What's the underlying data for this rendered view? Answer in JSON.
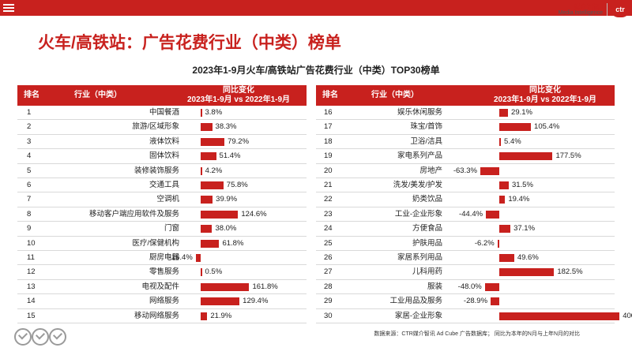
{
  "header": {
    "brand_cn": "媒介智讯 |",
    "brand_en": "Media Intelligence",
    "logo": "ctr"
  },
  "page_title": "火车/高铁站：广告花费行业（中类）榜单",
  "table_title": "2023年1-9月火车/高铁站广告花费行业（中类）TOP30榜单",
  "columns": {
    "rank": "排名",
    "industry": "行业（中类）",
    "change_line1": "同比变化",
    "change_line2": "2023年1-9月 vs 2022年1-9月"
  },
  "left_rows": [
    {
      "rank": "1",
      "industry": "中国餐酒",
      "value": 3.8,
      "label": "3.8%"
    },
    {
      "rank": "2",
      "industry": "旅游/区域形象",
      "value": 38.3,
      "label": "38.3%"
    },
    {
      "rank": "3",
      "industry": "液体饮料",
      "value": 79.2,
      "label": "79.2%"
    },
    {
      "rank": "4",
      "industry": "固体饮料",
      "value": 51.4,
      "label": "51.4%"
    },
    {
      "rank": "5",
      "industry": "装修装饰服务",
      "value": 4.2,
      "label": "4.2%"
    },
    {
      "rank": "6",
      "industry": "交通工具",
      "value": 75.8,
      "label": "75.8%"
    },
    {
      "rank": "7",
      "industry": "空调机",
      "value": 39.9,
      "label": "39.9%"
    },
    {
      "rank": "8",
      "industry": "移动客户端应用软件及服务",
      "value": 124.6,
      "label": "124.6%"
    },
    {
      "rank": "9",
      "industry": "门窗",
      "value": 38.0,
      "label": "38.0%"
    },
    {
      "rank": "10",
      "industry": "医疗/保健机构",
      "value": 61.8,
      "label": "61.8%"
    },
    {
      "rank": "11",
      "industry": "厨房电器",
      "value": -16.4,
      "label": "-16.4%"
    },
    {
      "rank": "12",
      "industry": "零售服务",
      "value": 0.5,
      "label": "0.5%"
    },
    {
      "rank": "13",
      "industry": "电视及配件",
      "value": 161.8,
      "label": "161.8%"
    },
    {
      "rank": "14",
      "industry": "网络服务",
      "value": 129.4,
      "label": "129.4%"
    },
    {
      "rank": "15",
      "industry": "移动网络服务",
      "value": 21.9,
      "label": "21.9%"
    }
  ],
  "right_rows": [
    {
      "rank": "16",
      "industry": "娱乐休闲服务",
      "value": 29.1,
      "label": "29.1%"
    },
    {
      "rank": "17",
      "industry": "珠宝/首饰",
      "value": 105.4,
      "label": "105.4%"
    },
    {
      "rank": "18",
      "industry": "卫浴/洁具",
      "value": 5.4,
      "label": "5.4%"
    },
    {
      "rank": "19",
      "industry": "家电系列产品",
      "value": 177.5,
      "label": "177.5%"
    },
    {
      "rank": "20",
      "industry": "房地产",
      "value": -63.3,
      "label": "-63.3%"
    },
    {
      "rank": "21",
      "industry": "洗发/美发/护发",
      "value": 31.5,
      "label": "31.5%"
    },
    {
      "rank": "22",
      "industry": "奶类饮品",
      "value": 19.4,
      "label": "19.4%"
    },
    {
      "rank": "23",
      "industry": "工业-企业形象",
      "value": -44.4,
      "label": "-44.4%"
    },
    {
      "rank": "24",
      "industry": "方便食品",
      "value": 37.1,
      "label": "37.1%"
    },
    {
      "rank": "25",
      "industry": "护肤用品",
      "value": -6.2,
      "label": "-6.2%"
    },
    {
      "rank": "26",
      "industry": "家居系列用品",
      "value": 49.6,
      "label": "49.6%"
    },
    {
      "rank": "27",
      "industry": "儿科用药",
      "value": 182.5,
      "label": "182.5%"
    },
    {
      "rank": "28",
      "industry": "服装",
      "value": -48.0,
      "label": "-48.0%"
    },
    {
      "rank": "29",
      "industry": "工业用品及服务",
      "value": -28.9,
      "label": "-28.9%"
    },
    {
      "rank": "30",
      "industry": "家居-企业形象",
      "value": 400.6,
      "label": "400.6%"
    }
  ],
  "footer": "数据来源：CTR媒介智讯 Ad Cube 广告数据库； 同比为本年的N月与上年N月的对比",
  "colors": {
    "accent": "#c8211e"
  }
}
